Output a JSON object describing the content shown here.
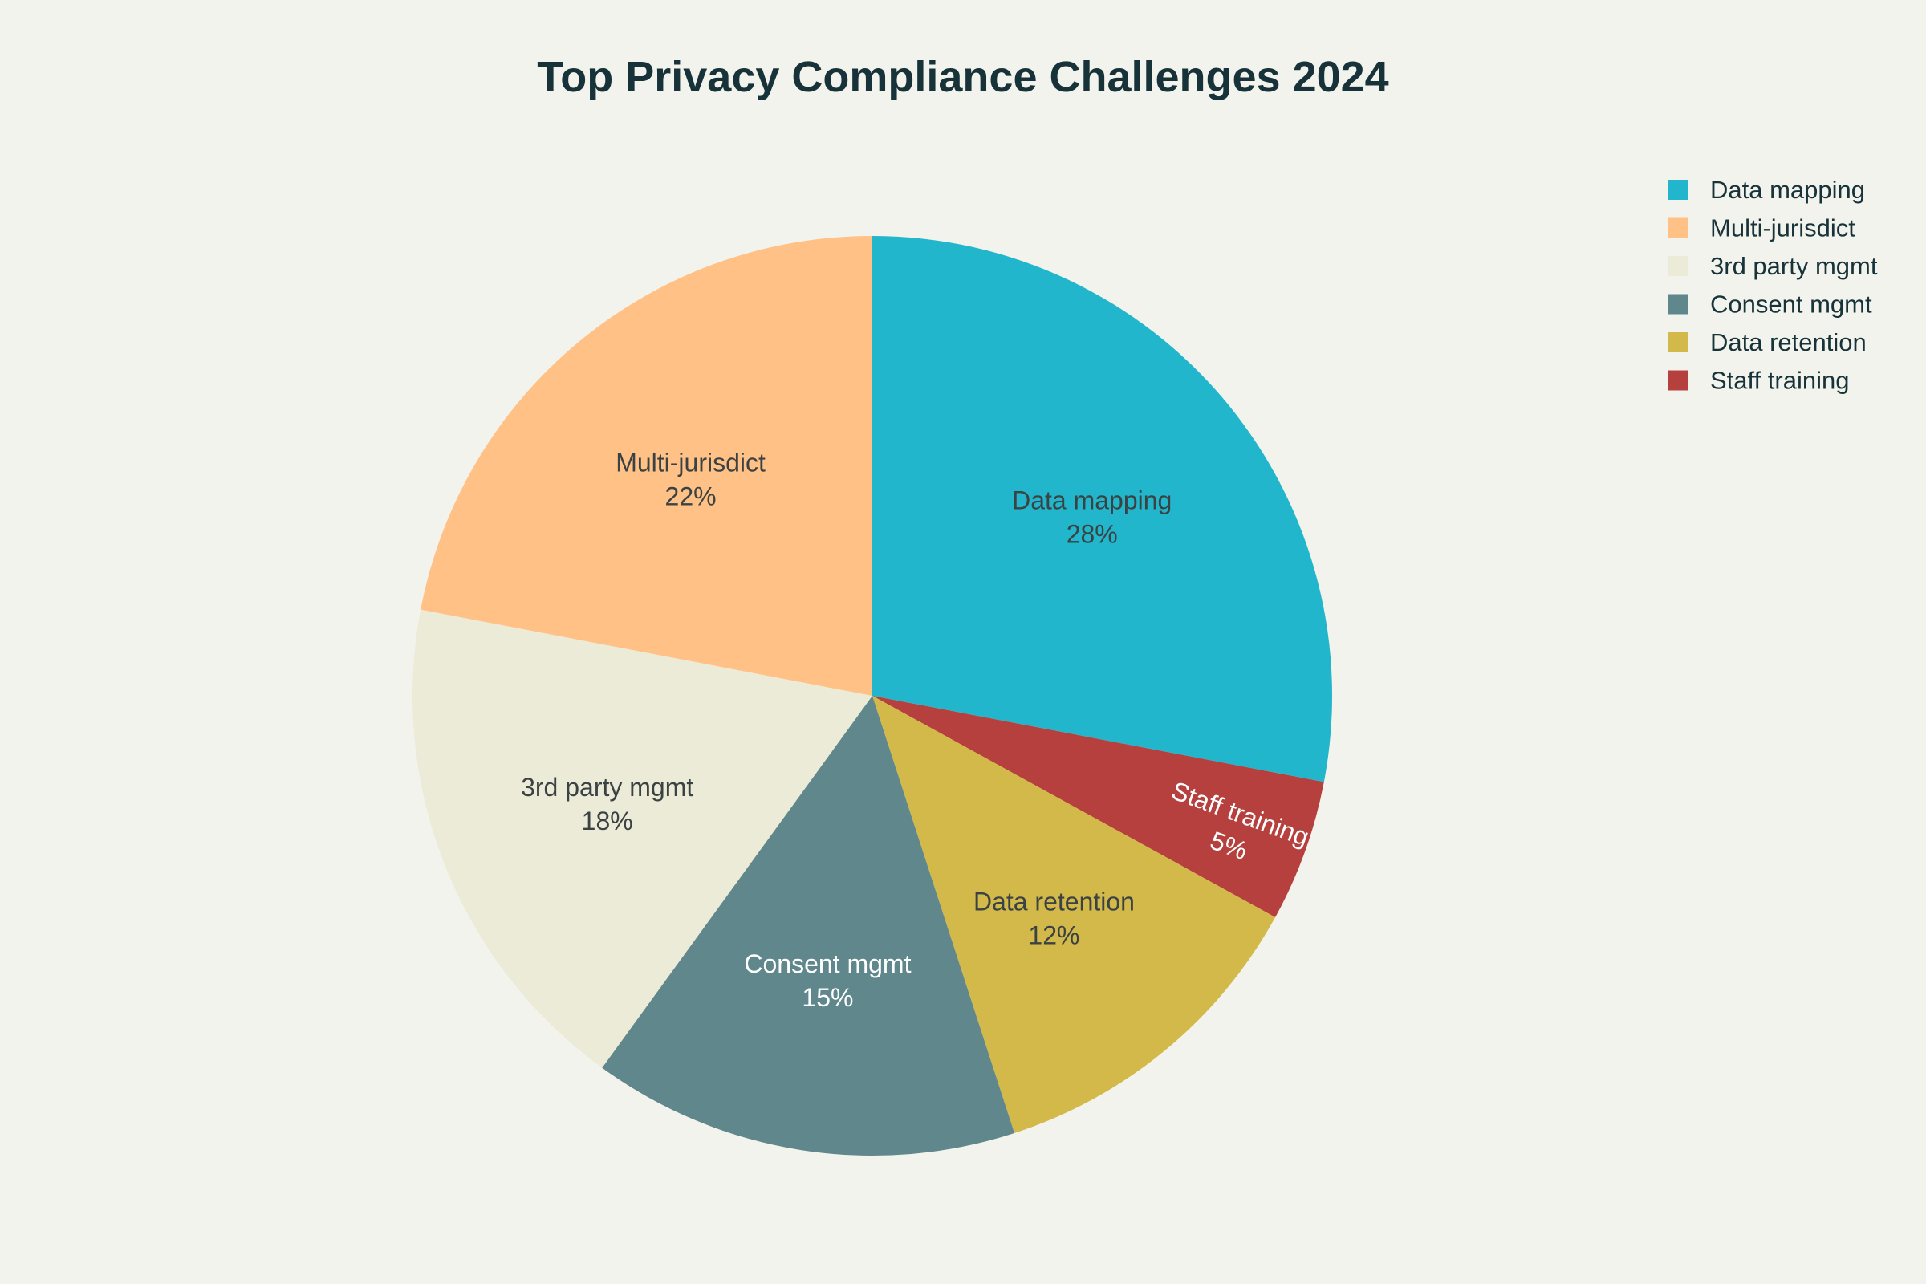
{
  "chart_data": {
    "type": "pie",
    "title": "Top Privacy Compliance Challenges 2024",
    "legend_position": "top-right",
    "start_angle": "12 o'clock",
    "direction": "clockwise",
    "slices": [
      {
        "label": "Data mapping",
        "value": 28,
        "display": "28%",
        "color": "#21b6cb",
        "text_color": "#3b4243"
      },
      {
        "label": "Staff training",
        "value": 5,
        "display": "5%",
        "color": "#b5403e",
        "text_color": "#ffffff"
      },
      {
        "label": "Data retention",
        "value": 12,
        "display": "12%",
        "color": "#d3b94a",
        "text_color": "#3b4243"
      },
      {
        "label": "Consent mgmt",
        "value": 15,
        "display": "15%",
        "color": "#5f878c",
        "text_color": "#ffffff"
      },
      {
        "label": "3rd party mgmt",
        "value": 18,
        "display": "18%",
        "color": "#ecebd7",
        "text_color": "#3b4243"
      },
      {
        "label": "Multi-jurisdict",
        "value": 22,
        "display": "22%",
        "color": "#ffc185",
        "text_color": "#3b4243"
      }
    ],
    "legend": [
      {
        "label": "Data mapping",
        "color": "#21b6cb"
      },
      {
        "label": "Multi-jurisdict",
        "color": "#ffc185"
      },
      {
        "label": "3rd party mgmt",
        "color": "#ecebd7"
      },
      {
        "label": "Consent mgmt",
        "color": "#5f878c"
      },
      {
        "label": "Data retention",
        "color": "#d3b94a"
      },
      {
        "label": "Staff training",
        "color": "#b5403e"
      }
    ]
  }
}
